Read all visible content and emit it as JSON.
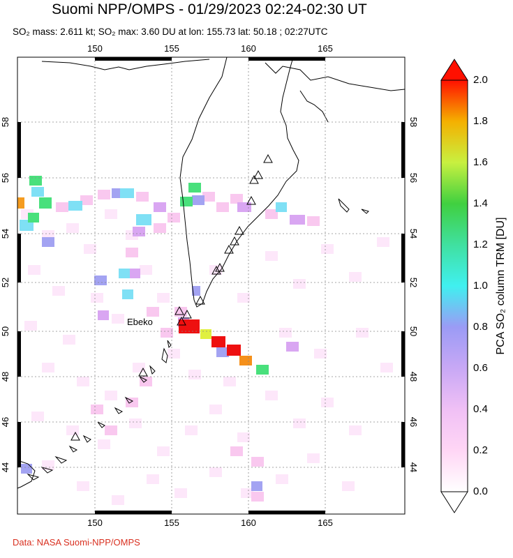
{
  "header": {
    "title": "Suomi NPP/OMPS - 01/29/2023 02:24-02:30 UT",
    "subtitle": "SO₂ mass: 2.611 kt; SO₂ max: 3.60 DU at lon: 155.73 lat: 50.18 ; 02:27UTC"
  },
  "footer": {
    "credit": "Data: NASA Suomi-NPP/OMPS"
  },
  "map": {
    "lon_ticks": [
      "150",
      "155",
      "160",
      "165"
    ],
    "lat_ticks": [
      "44",
      "46",
      "48",
      "50",
      "52",
      "54",
      "56",
      "58"
    ],
    "volcano_label": "Ebeko",
    "frame_color": "#000000",
    "grid_style": "dotted"
  },
  "colorbar": {
    "title": "PCA SO₂ column TRM [DU]",
    "ticks": [
      "0.0",
      "0.2",
      "0.4",
      "0.6",
      "0.8",
      "1.0",
      "1.2",
      "1.4",
      "1.6",
      "1.8",
      "2.0"
    ],
    "range": [
      0.0,
      2.0
    ],
    "colors": [
      "#ffffff",
      "#ffd6f5",
      "#e0b0f5",
      "#9b9bf5",
      "#7fd6f0",
      "#40f0f0",
      "#40e090",
      "#40d040",
      "#c8f040",
      "#f5c000",
      "#ff7000",
      "#ff1000"
    ]
  }
}
